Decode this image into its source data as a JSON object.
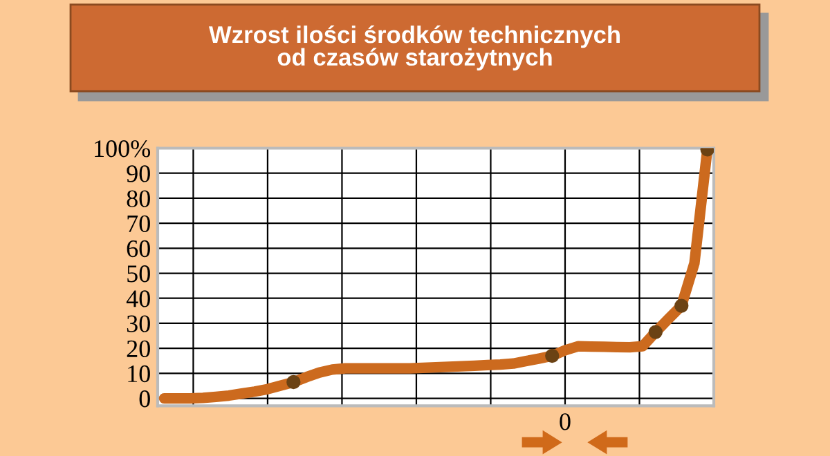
{
  "chart_data": {
    "type": "line",
    "title": "Wzrost ilości środków technicznych\nod czasów starożytnych",
    "categories": [
      null,
      null,
      null,
      null,
      null,
      null,
      null,
      null,
      null,
      null,
      null,
      null,
      null,
      null,
      null,
      null,
      null,
      null,
      null,
      null,
      null,
      null,
      null,
      null,
      null,
      null,
      null,
      null,
      null,
      null,
      null,
      "0",
      null,
      null,
      null,
      null,
      null,
      null,
      null,
      null,
      null,
      null,
      null
    ],
    "series": [
      {
        "color": "#cc6a1e",
        "marker": "none",
        "values": [
          0,
          0,
          0,
          0.2,
          0.6,
          1.1,
          1.9,
          2.7,
          3.7,
          5.1,
          6.5,
          8.5,
          10.3,
          11.5,
          12,
          12,
          12,
          12,
          12,
          12,
          12.2,
          12.4,
          12.6,
          12.8,
          13,
          13.3,
          13.5,
          13.9,
          14.9,
          15.9,
          17,
          19.2,
          20.8,
          20.7,
          20.6,
          20.5,
          20.4,
          20.8,
          26.5,
          31.8,
          37,
          54,
          99.5
        ]
      },
      {
        "type": "scatter",
        "color": "#6b4214",
        "marker": "circle",
        "values": [
          null,
          null,
          null,
          null,
          null,
          null,
          null,
          null,
          null,
          null,
          6.5,
          null,
          null,
          null,
          null,
          null,
          null,
          null,
          null,
          null,
          null,
          null,
          null,
          null,
          null,
          null,
          null,
          null,
          null,
          null,
          17,
          null,
          null,
          null,
          null,
          null,
          null,
          null,
          26.5,
          null,
          37,
          null,
          99.5
        ]
      }
    ],
    "ylim": [
      -3,
      100
    ],
    "yticks": [
      0,
      10,
      20,
      30,
      40,
      50,
      60,
      70,
      80,
      90,
      {
        "value": 100,
        "label": "100%"
      }
    ],
    "grid": true,
    "legend": false
  }
}
